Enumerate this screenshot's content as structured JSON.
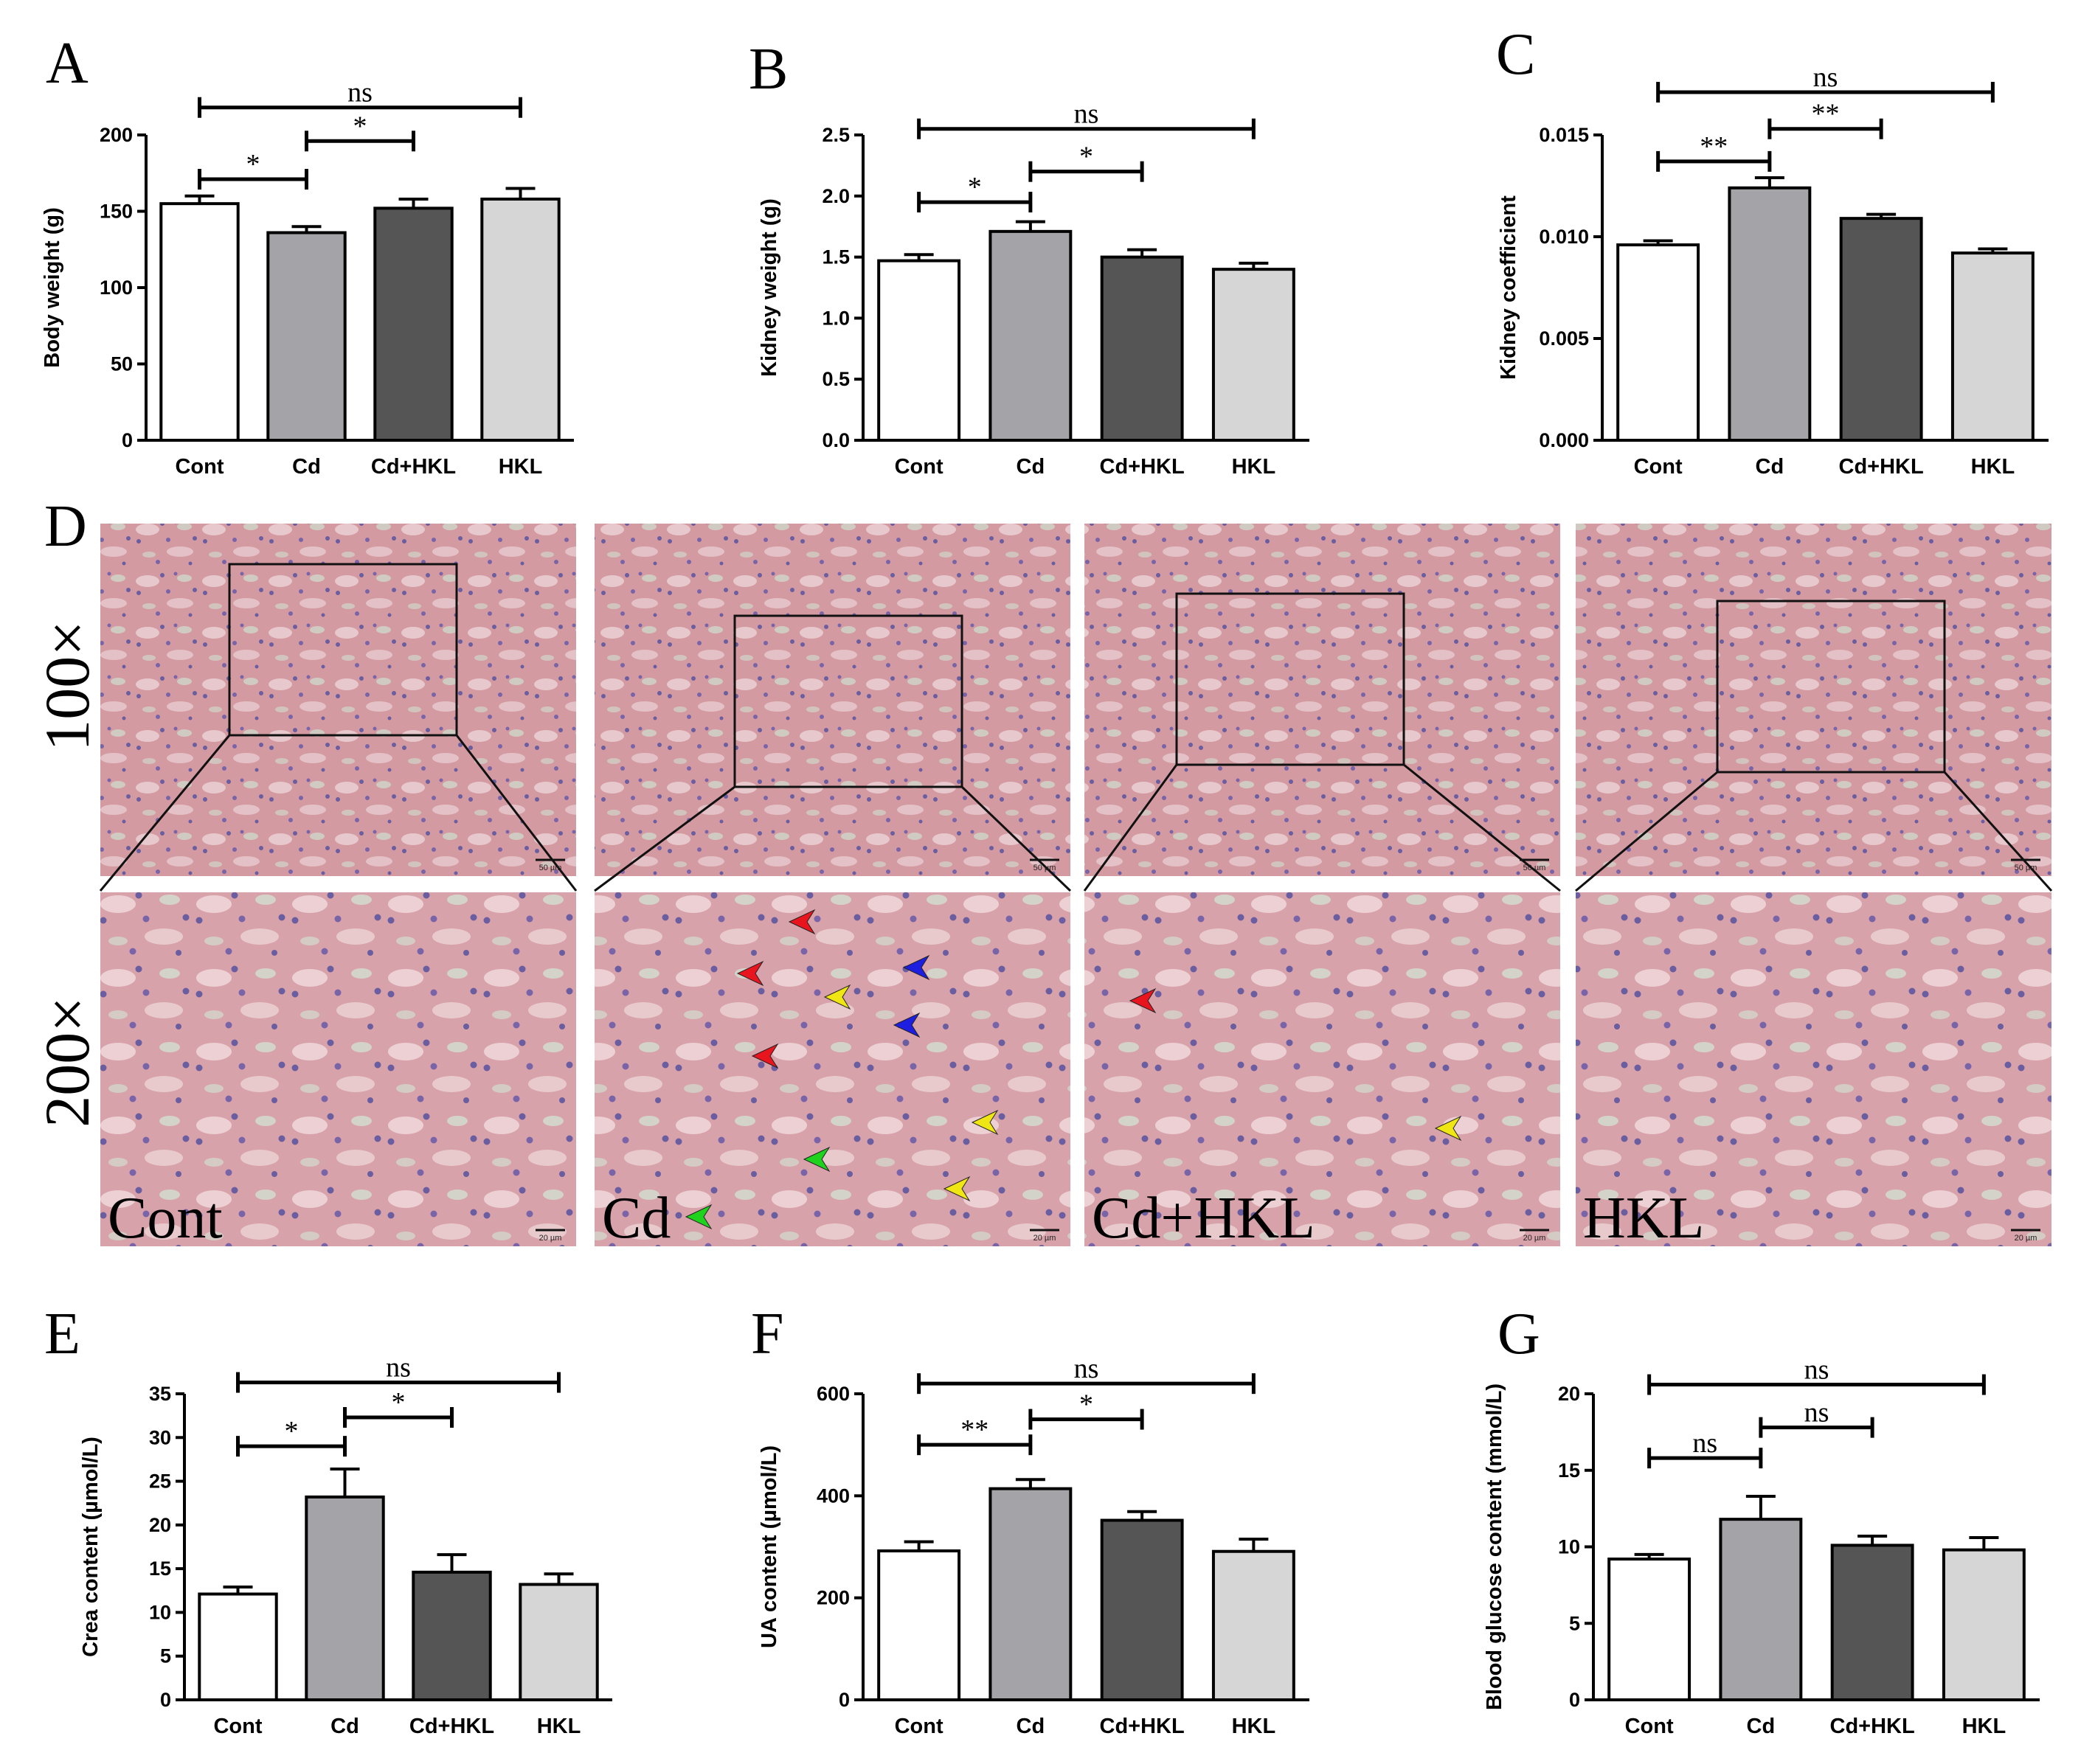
{
  "chart_data": [
    {
      "panel": "A",
      "type": "bar",
      "ylabel": "Body weight (g)",
      "categories": [
        "Cont",
        "Cd",
        "Cd+HKL",
        "HKL"
      ],
      "values": [
        155,
        136,
        152,
        158
      ],
      "errors": [
        5,
        4,
        6,
        7
      ],
      "ylim": [
        0,
        200
      ],
      "yticks": [
        0,
        50,
        100,
        150,
        200
      ],
      "colors": [
        "#ffffff",
        "#a3a3a8",
        "#555555",
        "#d6d6d6"
      ],
      "significance": [
        {
          "from": 0,
          "to": 1,
          "label": "*",
          "y": 171
        },
        {
          "from": 1,
          "to": 2,
          "label": "*",
          "y": 196
        },
        {
          "from": 0,
          "to": 3,
          "label": "ns",
          "y": 218
        }
      ]
    },
    {
      "panel": "B",
      "type": "bar",
      "ylabel": "Kidney weight (g)",
      "categories": [
        "Cont",
        "Cd",
        "Cd+HKL",
        "HKL"
      ],
      "values": [
        1.47,
        1.71,
        1.5,
        1.4
      ],
      "errors": [
        0.05,
        0.08,
        0.06,
        0.05
      ],
      "ylim": [
        0,
        2.5
      ],
      "yticks": [
        "0.0",
        "0.5",
        "1.0",
        "1.5",
        "2.0",
        "2.5"
      ],
      "colors": [
        "#ffffff",
        "#a3a3a8",
        "#555555",
        "#d6d6d6"
      ],
      "significance": [
        {
          "from": 0,
          "to": 1,
          "label": "*",
          "y": 1.95
        },
        {
          "from": 1,
          "to": 2,
          "label": "*",
          "y": 2.2
        },
        {
          "from": 0,
          "to": 3,
          "label": "ns",
          "y": 2.55
        }
      ]
    },
    {
      "panel": "C",
      "type": "bar",
      "ylabel": "Kidney coefficient",
      "categories": [
        "Cont",
        "Cd",
        "Cd+HKL",
        "HKL"
      ],
      "values": [
        0.0096,
        0.0124,
        0.0109,
        0.0092
      ],
      "errors": [
        0.0002,
        0.0005,
        0.0002,
        0.0002
      ],
      "ylim": [
        0,
        0.015
      ],
      "yticks": [
        "0.000",
        "0.005",
        "0.010",
        "0.015"
      ],
      "colors": [
        "#ffffff",
        "#a3a3a8",
        "#555555",
        "#d6d6d6"
      ],
      "significance": [
        {
          "from": 0,
          "to": 1,
          "label": "**",
          "y": 0.0137
        },
        {
          "from": 1,
          "to": 2,
          "label": "**",
          "y": 0.0153
        },
        {
          "from": 0,
          "to": 3,
          "label": "ns",
          "y": 0.0171
        }
      ]
    },
    {
      "panel": "E",
      "type": "bar",
      "ylabel": "Crea content (µmol/L)",
      "categories": [
        "Cont",
        "Cd",
        "Cd+HKL",
        "HKL"
      ],
      "values": [
        12.1,
        23.2,
        14.6,
        13.2
      ],
      "errors": [
        0.8,
        3.2,
        2.0,
        1.2
      ],
      "ylim": [
        0,
        35
      ],
      "yticks": [
        0,
        5,
        10,
        15,
        20,
        25,
        30,
        35
      ],
      "colors": [
        "#ffffff",
        "#a3a3a8",
        "#555555",
        "#d6d6d6"
      ],
      "significance": [
        {
          "from": 0,
          "to": 1,
          "label": "*",
          "y": 29
        },
        {
          "from": 1,
          "to": 2,
          "label": "*",
          "y": 32.3
        },
        {
          "from": 0,
          "to": 3,
          "label": "ns",
          "y": 36.3
        }
      ]
    },
    {
      "panel": "F",
      "type": "bar",
      "ylabel": "UA content (µmol/L)",
      "categories": [
        "Cont",
        "Cd",
        "Cd+HKL",
        "HKL"
      ],
      "values": [
        292,
        414,
        352,
        291
      ],
      "errors": [
        18,
        18,
        17,
        24
      ],
      "ylim": [
        0,
        600
      ],
      "yticks": [
        0,
        200,
        400,
        600
      ],
      "colors": [
        "#ffffff",
        "#a3a3a8",
        "#555555",
        "#d6d6d6"
      ],
      "significance": [
        {
          "from": 0,
          "to": 1,
          "label": "**",
          "y": 500
        },
        {
          "from": 1,
          "to": 2,
          "label": "*",
          "y": 550
        },
        {
          "from": 0,
          "to": 3,
          "label": "ns",
          "y": 620
        }
      ]
    },
    {
      "panel": "G",
      "type": "bar",
      "ylabel": "Blood glucose content (mmol/L)",
      "categories": [
        "Cont",
        "Cd",
        "Cd+HKL",
        "HKL"
      ],
      "values": [
        9.2,
        11.8,
        10.1,
        9.8
      ],
      "errors": [
        0.3,
        1.5,
        0.6,
        0.8
      ],
      "ylim": [
        0,
        20
      ],
      "yticks": [
        0,
        5,
        10,
        15,
        20
      ],
      "colors": [
        "#ffffff",
        "#a3a3a8",
        "#555555",
        "#d6d6d6"
      ],
      "significance": [
        {
          "from": 0,
          "to": 1,
          "label": "ns",
          "y": 15.8
        },
        {
          "from": 1,
          "to": 2,
          "label": "ns",
          "y": 17.8
        },
        {
          "from": 0,
          "to": 3,
          "label": "ns",
          "y": 20.6
        }
      ]
    }
  ],
  "histology": {
    "panel": "D",
    "magnifications": [
      "100×",
      "200×"
    ],
    "groups": [
      "Cont",
      "Cd",
      "Cd+HKL",
      "HKL"
    ],
    "scale_labels": [
      "50 µm",
      "20 µm"
    ],
    "arrow_colors": {
      "red": "#e8141e",
      "yellow": "#f0e614",
      "blue": "#1e1ee0",
      "green": "#1ed21e"
    }
  }
}
